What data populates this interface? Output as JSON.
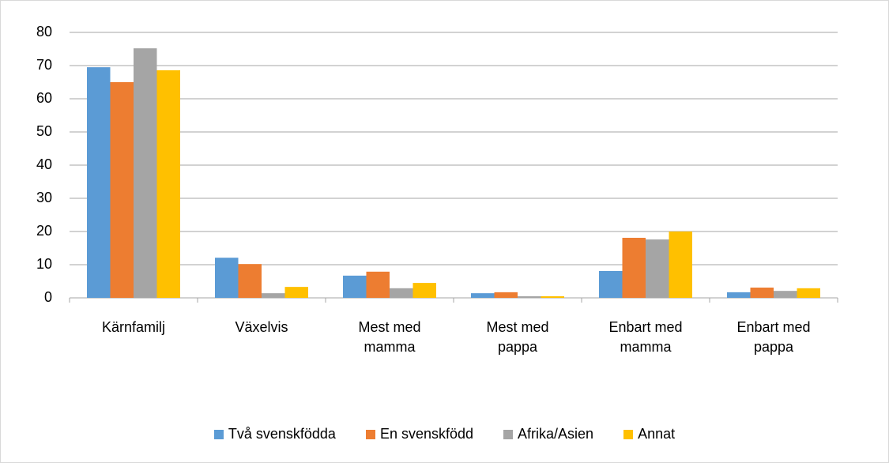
{
  "chart_data": {
    "type": "bar",
    "categories": [
      "Kärnfamilj",
      "Växelvis",
      "Mest med mamma",
      "Mest med pappa",
      "Enbart med mamma",
      "Enbart med pappa"
    ],
    "series": [
      {
        "name": "Två svenskfödda",
        "color": "#5b9bd5",
        "values": [
          69.5,
          12.1,
          6.7,
          1.4,
          8.1,
          1.7
        ]
      },
      {
        "name": "En svenskfödd",
        "color": "#ed7d31",
        "values": [
          65,
          10.2,
          7.9,
          1.7,
          18.1,
          3.1
        ]
      },
      {
        "name": "Afrika/Asien",
        "color": "#a5a5a5",
        "values": [
          75.2,
          1.4,
          2.9,
          0.5,
          17.6,
          2.1
        ]
      },
      {
        "name": "Annat",
        "color": "#ffc000",
        "values": [
          68.6,
          3.3,
          4.5,
          0.5,
          20,
          2.9
        ]
      }
    ],
    "ylim": [
      0,
      80
    ],
    "yticks": [
      0,
      10,
      20,
      30,
      40,
      50,
      60,
      70,
      80
    ],
    "grid": true,
    "legend": "bottom"
  }
}
